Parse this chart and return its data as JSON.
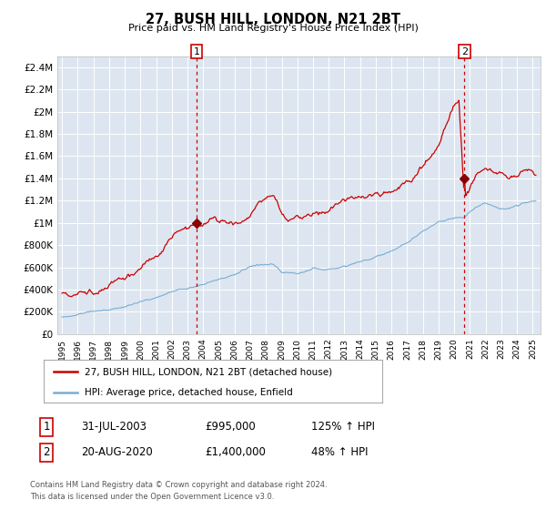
{
  "title": "27, BUSH HILL, LONDON, N21 2BT",
  "subtitle": "Price paid vs. HM Land Registry's House Price Index (HPI)",
  "background_color": "#dde6f0",
  "plot_bg_color": "#dde6f0",
  "red_line_color": "#cc0000",
  "blue_line_color": "#7aadd4",
  "marker_color": "#880000",
  "vline_color": "#cc0000",
  "ylim": [
    0,
    2500000
  ],
  "yticks": [
    0,
    200000,
    400000,
    600000,
    800000,
    1000000,
    1200000,
    1400000,
    1600000,
    1800000,
    2000000,
    2200000,
    2400000
  ],
  "ytick_labels": [
    "£0",
    "£200K",
    "£400K",
    "£600K",
    "£800K",
    "£1M",
    "£1.2M",
    "£1.4M",
    "£1.6M",
    "£1.8M",
    "£2M",
    "£2.2M",
    "£2.4M"
  ],
  "vline1_x": 2003.58,
  "vline2_x": 2020.64,
  "marker1_x": 2003.58,
  "marker1_y": 995000,
  "marker2_x": 2020.64,
  "marker2_y": 1400000,
  "legend_entries": [
    "27, BUSH HILL, LONDON, N21 2BT (detached house)",
    "HPI: Average price, detached house, Enfield"
  ],
  "annotation1_label": "1",
  "annotation1_date": "31-JUL-2003",
  "annotation1_price": "£995,000",
  "annotation1_hpi": "125% ↑ HPI",
  "annotation2_label": "2",
  "annotation2_date": "20-AUG-2020",
  "annotation2_price": "£1,400,000",
  "annotation2_hpi": "48% ↑ HPI",
  "footer": "Contains HM Land Registry data © Crown copyright and database right 2024.\nThis data is licensed under the Open Government Licence v3.0.",
  "xmin": 1994.7,
  "xmax": 2025.5,
  "red_waypoints_x": [
    1995.0,
    1996.0,
    1997.0,
    1997.5,
    1998.5,
    1999.5,
    2000.5,
    2001.5,
    2002.5,
    2003.58,
    2004.0,
    2004.5,
    2005.0,
    2005.5,
    2006.0,
    2006.5,
    2007.0,
    2007.5,
    2008.0,
    2008.5,
    2009.0,
    2009.5,
    2010.0,
    2010.5,
    2011.0,
    2011.5,
    2012.0,
    2012.5,
    2013.0,
    2013.5,
    2014.0,
    2014.5,
    2015.0,
    2015.5,
    2016.0,
    2016.5,
    2017.0,
    2017.5,
    2018.0,
    2018.5,
    2019.0,
    2019.3,
    2019.6,
    2019.9,
    2020.1,
    2020.3,
    2020.64,
    2020.9,
    2021.2,
    2021.5,
    2021.8,
    2022.0,
    2022.3,
    2022.6,
    2022.9,
    2023.2,
    2023.5,
    2023.8,
    2024.1,
    2024.5,
    2024.9,
    2025.2
  ],
  "red_waypoints_y": [
    370000,
    390000,
    430000,
    460000,
    510000,
    570000,
    680000,
    800000,
    900000,
    995000,
    1020000,
    1060000,
    1080000,
    1070000,
    1090000,
    1100000,
    1150000,
    1280000,
    1300000,
    1320000,
    1150000,
    1100000,
    1120000,
    1140000,
    1160000,
    1150000,
    1180000,
    1230000,
    1260000,
    1290000,
    1300000,
    1320000,
    1350000,
    1370000,
    1390000,
    1420000,
    1460000,
    1520000,
    1600000,
    1700000,
    1850000,
    1970000,
    2050000,
    2150000,
    2200000,
    2250000,
    1400000,
    1450000,
    1520000,
    1580000,
    1620000,
    1650000,
    1620000,
    1590000,
    1570000,
    1560000,
    1550000,
    1560000,
    1570000,
    1590000,
    1580000,
    1560000
  ],
  "blue_waypoints_x": [
    1995.0,
    1996.0,
    1997.0,
    1998.0,
    1999.0,
    2000.0,
    2001.0,
    2002.0,
    2003.0,
    2003.58,
    2004.0,
    2005.0,
    2006.0,
    2007.0,
    2007.5,
    2008.0,
    2008.5,
    2009.0,
    2009.5,
    2010.0,
    2011.0,
    2012.0,
    2013.0,
    2014.0,
    2015.0,
    2016.0,
    2017.0,
    2018.0,
    2019.0,
    2019.5,
    2020.0,
    2020.64,
    2021.0,
    2021.5,
    2022.0,
    2022.5,
    2023.0,
    2023.5,
    2024.0,
    2024.5,
    2025.2
  ],
  "blue_waypoints_y": [
    155000,
    175000,
    200000,
    225000,
    260000,
    300000,
    340000,
    385000,
    415000,
    430000,
    440000,
    460000,
    490000,
    545000,
    565000,
    575000,
    570000,
    490000,
    475000,
    480000,
    500000,
    510000,
    540000,
    580000,
    630000,
    680000,
    750000,
    840000,
    900000,
    920000,
    930000,
    950000,
    990000,
    1030000,
    1060000,
    1050000,
    1020000,
    1020000,
    1050000,
    1070000,
    1080000
  ]
}
